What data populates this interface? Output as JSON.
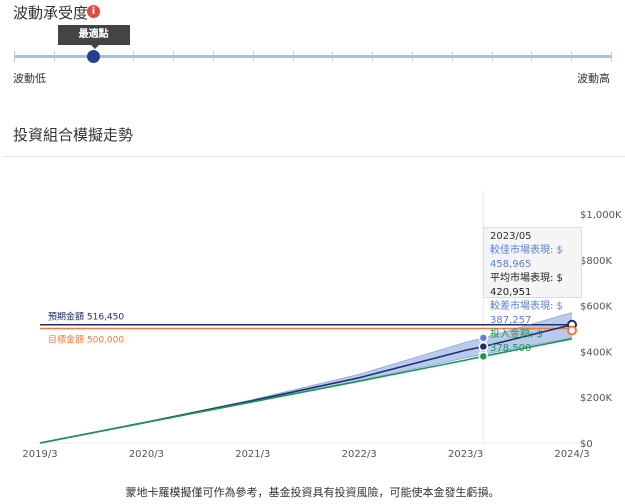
{
  "risk": {
    "title": "波動承受度",
    "tooltip": "最適點",
    "low_label": "波動低",
    "high_label": "波動高",
    "ticks": 16,
    "selected_index": 2
  },
  "section_title": "投資組合模擬走勢",
  "chart_data": {
    "type": "line",
    "x": [
      "2019/3",
      "2020/3",
      "2021/3",
      "2022/3",
      "2023/3",
      "2023/05",
      "2024/3"
    ],
    "xticks": [
      "2019/3",
      "2020/3",
      "2021/3",
      "2022/3",
      "2023/3",
      "2024/3"
    ],
    "yticks": [
      "$0",
      "$200K",
      "$400K",
      "$600K",
      "$800K",
      "$1,000K"
    ],
    "ylim": [
      0,
      1000000
    ],
    "series": [
      {
        "name": "較佳市場表現",
        "color": "#5b7fd6",
        "values": [
          0,
          92000,
          190000,
          300000,
          440000,
          458965,
          570000
        ]
      },
      {
        "name": "平均市場表現",
        "color": "#1f2f6e",
        "values": [
          0,
          91000,
          185000,
          285000,
          405000,
          420951,
          516450
        ]
      },
      {
        "name": "較差市場表現",
        "color": "#5b7fd6",
        "values": [
          0,
          90000,
          180000,
          272000,
          372000,
          387257,
          460000
        ]
      },
      {
        "name": "投入金額",
        "color": "#1a9850",
        "values": [
          0,
          90000,
          180000,
          270000,
          362000,
          378500,
          455000
        ]
      }
    ],
    "reference_lines": [
      {
        "label": "預期金額 516,450",
        "value": 516450,
        "color": "#1f2f6e"
      },
      {
        "label": "目標金額 500,000",
        "value": 500000,
        "color": "#f07a3c"
      }
    ],
    "tooltip": {
      "title": "2023/05",
      "rows": [
        "較佳市場表現: $ 458,965",
        "平均市場表現: $ 420,951",
        "較差市場表現: $ 387,257",
        "投入金額: $ 378,500"
      ],
      "colors": [
        "#5b7fd6",
        "#222222",
        "#5b7fd6",
        "#1a9850"
      ]
    }
  },
  "footnote": "蒙地卡羅模擬僅可作為參考，基金投資具有投資風險，可能使本金發生虧損。"
}
